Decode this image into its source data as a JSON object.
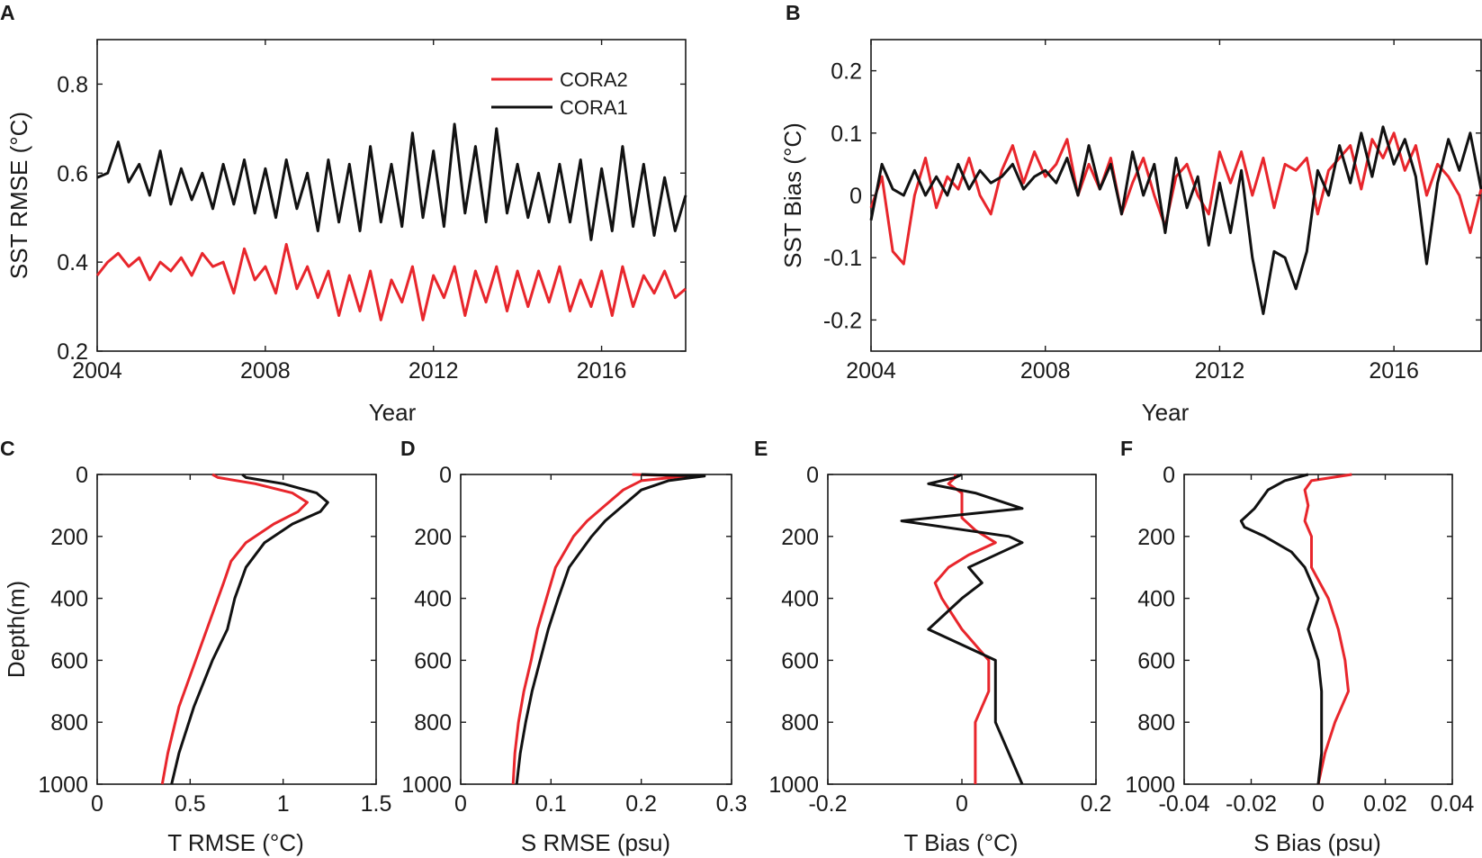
{
  "colors": {
    "cora2": "#e8262c",
    "cora1": "#111111",
    "axis": "#1a1a1a"
  },
  "chart_data": [
    {
      "panel": "A",
      "type": "line",
      "xlabel": "Year",
      "ylabel": "SST RMSE (°C)",
      "xlim": [
        2004,
        2018
      ],
      "ylim": [
        0.2,
        0.9
      ],
      "xticks": [
        2004,
        2008,
        2012,
        2016
      ],
      "xtick_labels": [
        "2004",
        "2008",
        "2012",
        "2016"
      ],
      "yticks": [
        0.2,
        0.4,
        0.6,
        0.8
      ],
      "ytick_labels": [
        "0.2",
        "0.4",
        "0.6",
        "0.8"
      ],
      "legend": {
        "placement": "top-right",
        "entries": [
          "CORA2",
          "CORA1"
        ]
      },
      "series": [
        {
          "name": "CORA2",
          "color": "#e8262c",
          "x": [
            2004.0,
            2004.25,
            2004.5,
            2004.75,
            2005.0,
            2005.25,
            2005.5,
            2005.75,
            2006.0,
            2006.25,
            2006.5,
            2006.75,
            2007.0,
            2007.25,
            2007.5,
            2007.75,
            2008.0,
            2008.25,
            2008.5,
            2008.75,
            2009.0,
            2009.25,
            2009.5,
            2009.75,
            2010.0,
            2010.25,
            2010.5,
            2010.75,
            2011.0,
            2011.25,
            2011.5,
            2011.75,
            2012.0,
            2012.25,
            2012.5,
            2012.75,
            2013.0,
            2013.25,
            2013.5,
            2013.75,
            2014.0,
            2014.25,
            2014.5,
            2014.75,
            2015.0,
            2015.25,
            2015.5,
            2015.75,
            2016.0,
            2016.25,
            2016.5,
            2016.75,
            2017.0,
            2017.25,
            2017.5,
            2017.75,
            2018.0
          ],
          "values": [
            0.37,
            0.4,
            0.42,
            0.39,
            0.41,
            0.36,
            0.4,
            0.38,
            0.41,
            0.37,
            0.42,
            0.39,
            0.4,
            0.33,
            0.43,
            0.36,
            0.39,
            0.33,
            0.44,
            0.34,
            0.39,
            0.32,
            0.38,
            0.28,
            0.37,
            0.29,
            0.38,
            0.27,
            0.36,
            0.31,
            0.39,
            0.27,
            0.37,
            0.32,
            0.39,
            0.28,
            0.38,
            0.31,
            0.39,
            0.29,
            0.38,
            0.3,
            0.38,
            0.31,
            0.39,
            0.29,
            0.36,
            0.3,
            0.38,
            0.28,
            0.39,
            0.3,
            0.37,
            0.33,
            0.38,
            0.32,
            0.34
          ]
        },
        {
          "name": "CORA1",
          "color": "#111111",
          "x": [
            2004.0,
            2004.25,
            2004.5,
            2004.75,
            2005.0,
            2005.25,
            2005.5,
            2005.75,
            2006.0,
            2006.25,
            2006.5,
            2006.75,
            2007.0,
            2007.25,
            2007.5,
            2007.75,
            2008.0,
            2008.25,
            2008.5,
            2008.75,
            2009.0,
            2009.25,
            2009.5,
            2009.75,
            2010.0,
            2010.25,
            2010.5,
            2010.75,
            2011.0,
            2011.25,
            2011.5,
            2011.75,
            2012.0,
            2012.25,
            2012.5,
            2012.75,
            2013.0,
            2013.25,
            2013.5,
            2013.75,
            2014.0,
            2014.25,
            2014.5,
            2014.75,
            2015.0,
            2015.25,
            2015.5,
            2015.75,
            2016.0,
            2016.25,
            2016.5,
            2016.75,
            2017.0,
            2017.25,
            2017.5,
            2017.75,
            2018.0
          ],
          "values": [
            0.59,
            0.6,
            0.67,
            0.58,
            0.62,
            0.55,
            0.65,
            0.53,
            0.61,
            0.54,
            0.6,
            0.52,
            0.62,
            0.53,
            0.63,
            0.51,
            0.61,
            0.5,
            0.63,
            0.52,
            0.6,
            0.47,
            0.63,
            0.49,
            0.62,
            0.47,
            0.66,
            0.49,
            0.62,
            0.48,
            0.69,
            0.5,
            0.65,
            0.48,
            0.71,
            0.51,
            0.66,
            0.49,
            0.7,
            0.51,
            0.62,
            0.5,
            0.6,
            0.49,
            0.62,
            0.49,
            0.63,
            0.45,
            0.61,
            0.47,
            0.66,
            0.48,
            0.62,
            0.46,
            0.59,
            0.47,
            0.55
          ]
        }
      ]
    },
    {
      "panel": "B",
      "type": "line",
      "xlabel": "Year",
      "ylabel": "SST Bias (°C)",
      "xlim": [
        2004,
        2018
      ],
      "ylim": [
        -0.25,
        0.25
      ],
      "xticks": [
        2004,
        2008,
        2012,
        2016
      ],
      "xtick_labels": [
        "2004",
        "2008",
        "2012",
        "2016"
      ],
      "yticks": [
        -0.2,
        -0.1,
        0,
        0.1,
        0.2
      ],
      "ytick_labels": [
        "-0.2",
        "-0.1",
        "0",
        "0.1",
        "0.2"
      ],
      "series": [
        {
          "name": "CORA2",
          "color": "#e8262c",
          "x": [
            2004.0,
            2004.25,
            2004.5,
            2004.75,
            2005.0,
            2005.25,
            2005.5,
            2005.75,
            2006.0,
            2006.25,
            2006.5,
            2006.75,
            2007.0,
            2007.25,
            2007.5,
            2007.75,
            2008.0,
            2008.25,
            2008.5,
            2008.75,
            2009.0,
            2009.25,
            2009.5,
            2009.75,
            2010.0,
            2010.25,
            2010.5,
            2010.75,
            2011.0,
            2011.25,
            2011.5,
            2011.75,
            2012.0,
            2012.25,
            2012.5,
            2012.75,
            2013.0,
            2013.25,
            2013.5,
            2013.75,
            2014.0,
            2014.25,
            2014.5,
            2014.75,
            2015.0,
            2015.25,
            2015.5,
            2015.75,
            2016.0,
            2016.25,
            2016.5,
            2016.75,
            2017.0,
            2017.25,
            2017.5,
            2017.75,
            2018.0
          ],
          "values": [
            -0.02,
            0.03,
            -0.09,
            -0.11,
            0.0,
            0.06,
            -0.02,
            0.03,
            0.01,
            0.06,
            0.0,
            -0.03,
            0.04,
            0.08,
            0.02,
            0.07,
            0.03,
            0.05,
            0.09,
            0.0,
            0.05,
            0.01,
            0.06,
            -0.03,
            0.02,
            0.06,
            0.0,
            -0.05,
            0.03,
            0.05,
            0.0,
            -0.03,
            0.07,
            0.02,
            0.07,
            0.0,
            0.06,
            -0.02,
            0.05,
            0.04,
            0.06,
            -0.03,
            0.04,
            0.06,
            0.08,
            0.01,
            0.09,
            0.06,
            0.1,
            0.04,
            0.08,
            0.0,
            0.05,
            0.03,
            0.0,
            -0.06,
            0.01
          ]
        },
        {
          "name": "CORA1",
          "color": "#111111",
          "x": [
            2004.0,
            2004.25,
            2004.5,
            2004.75,
            2005.0,
            2005.25,
            2005.5,
            2005.75,
            2006.0,
            2006.25,
            2006.5,
            2006.75,
            2007.0,
            2007.25,
            2007.5,
            2007.75,
            2008.0,
            2008.25,
            2008.5,
            2008.75,
            2009.0,
            2009.25,
            2009.5,
            2009.75,
            2010.0,
            2010.25,
            2010.5,
            2010.75,
            2011.0,
            2011.25,
            2011.5,
            2011.75,
            2012.0,
            2012.25,
            2012.5,
            2012.75,
            2013.0,
            2013.25,
            2013.5,
            2013.75,
            2014.0,
            2014.25,
            2014.5,
            2014.75,
            2015.0,
            2015.25,
            2015.5,
            2015.75,
            2016.0,
            2016.25,
            2016.5,
            2016.75,
            2017.0,
            2017.25,
            2017.5,
            2017.75,
            2018.0
          ],
          "values": [
            -0.04,
            0.05,
            0.01,
            0.0,
            0.04,
            0.0,
            0.03,
            0.0,
            0.05,
            0.01,
            0.04,
            0.02,
            0.03,
            0.05,
            0.01,
            0.03,
            0.04,
            0.02,
            0.06,
            0.0,
            0.08,
            0.01,
            0.05,
            -0.03,
            0.07,
            0.0,
            0.05,
            -0.06,
            0.06,
            -0.02,
            0.03,
            -0.08,
            0.02,
            -0.06,
            0.04,
            -0.1,
            -0.19,
            -0.09,
            -0.1,
            -0.15,
            -0.09,
            0.04,
            0.0,
            0.08,
            0.02,
            0.1,
            0.03,
            0.11,
            0.05,
            0.09,
            0.03,
            -0.11,
            0.02,
            0.09,
            0.04,
            0.1,
            0.01
          ]
        }
      ]
    },
    {
      "panel": "C",
      "type": "line",
      "orientation": "profile",
      "xlabel": "T RMSE (°C)",
      "ylabel": "Depth(m)",
      "xlim": [
        0,
        1.5
      ],
      "ylim": [
        0,
        1000
      ],
      "y_inverted": true,
      "xticks": [
        0,
        0.5,
        1,
        1.5
      ],
      "xtick_labels": [
        "0",
        "0.5",
        "1",
        "1.5"
      ],
      "yticks": [
        0,
        200,
        400,
        600,
        800,
        1000
      ],
      "ytick_labels": [
        "0",
        "200",
        "400",
        "600",
        "800",
        "1000"
      ],
      "series": [
        {
          "name": "CORA2",
          "color": "#e8262c",
          "depth": [
            0,
            10,
            30,
            60,
            90,
            120,
            160,
            220,
            280,
            350,
            450,
            600,
            750,
            900,
            1000
          ],
          "values": [
            0.62,
            0.65,
            0.85,
            1.05,
            1.13,
            1.08,
            0.95,
            0.8,
            0.72,
            0.68,
            0.62,
            0.53,
            0.44,
            0.38,
            0.35
          ]
        },
        {
          "name": "CORA1",
          "color": "#111111",
          "depth": [
            0,
            10,
            30,
            60,
            90,
            120,
            160,
            220,
            300,
            400,
            500,
            600,
            750,
            900,
            1000
          ],
          "values": [
            0.78,
            0.8,
            1.0,
            1.18,
            1.24,
            1.2,
            1.05,
            0.9,
            0.8,
            0.74,
            0.7,
            0.62,
            0.52,
            0.44,
            0.4
          ]
        }
      ]
    },
    {
      "panel": "D",
      "type": "line",
      "orientation": "profile",
      "xlabel": "S RMSE (psu)",
      "ylabel": "",
      "xlim": [
        0,
        0.3
      ],
      "ylim": [
        0,
        1000
      ],
      "y_inverted": true,
      "xticks": [
        0,
        0.1,
        0.2,
        0.3
      ],
      "xtick_labels": [
        "0",
        "0.1",
        "0.2",
        "0.3"
      ],
      "yticks": [
        0,
        200,
        400,
        600,
        800,
        1000
      ],
      "ytick_labels": [
        "0",
        "200",
        "400",
        "600",
        "800",
        "1000"
      ],
      "series": [
        {
          "name": "CORA2",
          "color": "#e8262c",
          "depth": [
            0,
            5,
            20,
            50,
            100,
            150,
            200,
            300,
            400,
            500,
            600,
            700,
            800,
            900,
            1000
          ],
          "values": [
            0.19,
            0.25,
            0.2,
            0.18,
            0.16,
            0.14,
            0.125,
            0.105,
            0.095,
            0.085,
            0.078,
            0.07,
            0.064,
            0.06,
            0.058
          ]
        },
        {
          "name": "CORA1",
          "color": "#111111",
          "depth": [
            0,
            5,
            20,
            50,
            100,
            150,
            200,
            300,
            400,
            500,
            600,
            700,
            800,
            900,
            1000
          ],
          "values": [
            0.2,
            0.27,
            0.23,
            0.2,
            0.18,
            0.16,
            0.145,
            0.12,
            0.108,
            0.097,
            0.088,
            0.079,
            0.072,
            0.066,
            0.062
          ]
        }
      ]
    },
    {
      "panel": "E",
      "type": "line",
      "orientation": "profile",
      "xlabel": "T Bias (°C)",
      "ylabel": "",
      "xlim": [
        -0.2,
        0.2
      ],
      "ylim": [
        0,
        1000
      ],
      "y_inverted": true,
      "xticks": [
        -0.2,
        0,
        0.2
      ],
      "xtick_labels": [
        "-0.2",
        "0",
        "0.2"
      ],
      "yticks": [
        0,
        200,
        400,
        600,
        800,
        1000
      ],
      "ytick_labels": [
        "0",
        "200",
        "400",
        "600",
        "800",
        "1000"
      ],
      "series": [
        {
          "name": "CORA2",
          "color": "#e8262c",
          "depth": [
            0,
            10,
            30,
            60,
            100,
            140,
            180,
            220,
            260,
            300,
            350,
            400,
            500,
            600,
            700,
            800,
            1000
          ],
          "values": [
            -0.01,
            -0.01,
            -0.02,
            0.0,
            0.0,
            0.0,
            0.02,
            0.05,
            0.01,
            -0.02,
            -0.04,
            -0.03,
            0.0,
            0.04,
            0.04,
            0.02,
            0.02
          ]
        },
        {
          "name": "CORA1",
          "color": "#111111",
          "depth": [
            0,
            10,
            30,
            60,
            110,
            150,
            200,
            220,
            300,
            350,
            400,
            500,
            600,
            750,
            800,
            900,
            1000
          ],
          "values": [
            0.0,
            -0.01,
            -0.05,
            0.02,
            0.09,
            -0.09,
            0.07,
            0.09,
            0.01,
            0.03,
            0.0,
            -0.05,
            0.05,
            0.05,
            0.05,
            0.07,
            0.09
          ]
        }
      ]
    },
    {
      "panel": "F",
      "type": "line",
      "orientation": "profile",
      "xlabel": "S Bias (psu)",
      "ylabel": "",
      "xlim": [
        -0.04,
        0.04
      ],
      "ylim": [
        0,
        1000
      ],
      "y_inverted": true,
      "xticks": [
        -0.04,
        -0.02,
        0,
        0.02,
        0.04
      ],
      "xtick_labels": [
        "-0.04",
        "-0.02",
        "0",
        "0.02",
        "0.04"
      ],
      "yticks": [
        0,
        200,
        400,
        600,
        800,
        1000
      ],
      "ytick_labels": [
        "0",
        "200",
        "400",
        "600",
        "800",
        "1000"
      ],
      "series": [
        {
          "name": "CORA2",
          "color": "#e8262c",
          "depth": [
            0,
            20,
            50,
            100,
            150,
            200,
            250,
            300,
            400,
            500,
            600,
            700,
            800,
            900,
            1000
          ],
          "values": [
            0.01,
            -0.002,
            -0.004,
            -0.003,
            -0.004,
            -0.002,
            -0.002,
            -0.002,
            0.003,
            0.006,
            0.008,
            0.009,
            0.005,
            0.002,
            0.0
          ]
        },
        {
          "name": "CORA1",
          "color": "#111111",
          "depth": [
            0,
            20,
            50,
            80,
            110,
            150,
            170,
            200,
            250,
            300,
            400,
            500,
            600,
            700,
            800,
            900,
            1000
          ],
          "values": [
            -0.003,
            -0.01,
            -0.015,
            -0.017,
            -0.019,
            -0.023,
            -0.022,
            -0.016,
            -0.008,
            -0.004,
            0.0,
            -0.003,
            0.0,
            0.001,
            0.001,
            0.001,
            0.0
          ]
        }
      ]
    }
  ]
}
